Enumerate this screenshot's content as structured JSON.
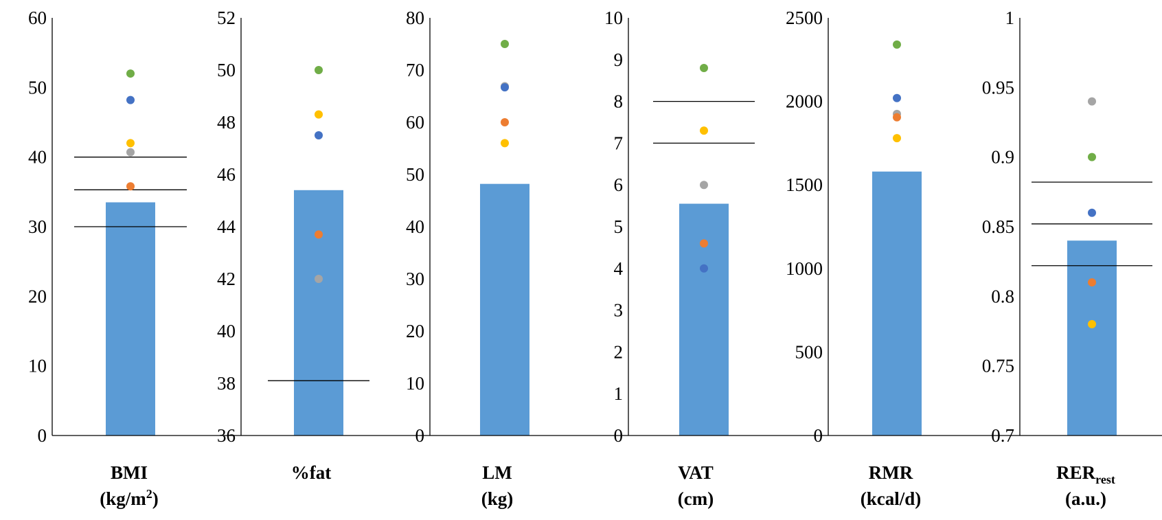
{
  "chart_data": [
    {
      "type": "bar",
      "category": "BMI",
      "label_lines": [
        {
          "main": "BMI"
        },
        {
          "main": "(kg/m",
          "sup": "2",
          "tail": ")"
        }
      ],
      "ylim": [
        0,
        60
      ],
      "yticks": [
        "0",
        "10",
        "20",
        "30",
        "40",
        "50",
        "60"
      ],
      "ytick_values": [
        0,
        10,
        20,
        30,
        40,
        50,
        60
      ],
      "bar_value": 33.5,
      "reference_lines": [
        40,
        35.3,
        30
      ],
      "points": [
        {
          "color": "#70ad47",
          "value": 52
        },
        {
          "color": "#4472c4",
          "value": 48.2
        },
        {
          "color": "#ffc000",
          "value": 42
        },
        {
          "color": "#a5a5a5",
          "value": 40.7
        },
        {
          "color": "#ed7d31",
          "value": 35.8
        }
      ]
    },
    {
      "type": "bar",
      "category": "%fat",
      "label_lines": [
        {
          "main": "%fat"
        }
      ],
      "ylim": [
        36,
        52
      ],
      "yticks": [
        "36",
        "38",
        "40",
        "42",
        "44",
        "46",
        "48",
        "50",
        "52"
      ],
      "ytick_values": [
        36,
        38,
        40,
        42,
        44,
        46,
        48,
        50,
        52
      ],
      "bar_value": 45.4,
      "reference_lines": [
        38.1
      ],
      "points": [
        {
          "color": "#70ad47",
          "value": 50
        },
        {
          "color": "#ffc000",
          "value": 48.3
        },
        {
          "color": "#4472c4",
          "value": 47.5
        },
        {
          "color": "#ed7d31",
          "value": 43.7
        },
        {
          "color": "#a5a5a5",
          "value": 42
        }
      ]
    },
    {
      "type": "bar",
      "category": "LM",
      "label_lines": [
        {
          "main": "LM"
        },
        {
          "main": "(kg)"
        }
      ],
      "ylim": [
        0,
        80
      ],
      "yticks": [
        "0",
        "10",
        "20",
        "30",
        "40",
        "50",
        "60",
        "70",
        "80"
      ],
      "ytick_values": [
        0,
        10,
        20,
        30,
        40,
        50,
        60,
        70,
        80
      ],
      "bar_value": 48.2,
      "reference_lines": [],
      "points": [
        {
          "color": "#70ad47",
          "value": 75
        },
        {
          "color": "#a5a5a5",
          "value": 66.9
        },
        {
          "color": "#4472c4",
          "value": 66.7
        },
        {
          "color": "#ed7d31",
          "value": 60
        },
        {
          "color": "#ffc000",
          "value": 56
        }
      ]
    },
    {
      "type": "bar",
      "category": "VAT",
      "label_lines": [
        {
          "main": "VAT"
        },
        {
          "main": "(cm)"
        }
      ],
      "ylim": [
        0,
        10
      ],
      "yticks": [
        "0",
        "1",
        "2",
        "3",
        "4",
        "5",
        "6",
        "7",
        "8",
        "9",
        "10"
      ],
      "ytick_values": [
        0,
        1,
        2,
        3,
        4,
        5,
        6,
        7,
        8,
        9,
        10
      ],
      "bar_value": 5.55,
      "reference_lines": [
        8,
        7
      ],
      "points": [
        {
          "color": "#70ad47",
          "value": 8.8
        },
        {
          "color": "#ffc000",
          "value": 7.3
        },
        {
          "color": "#a5a5a5",
          "value": 6
        },
        {
          "color": "#ed7d31",
          "value": 4.6
        },
        {
          "color": "#4472c4",
          "value": 4
        }
      ]
    },
    {
      "type": "bar",
      "category": "RMR",
      "label_lines": [
        {
          "main": "RMR"
        },
        {
          "main": "(kcal/d)"
        }
      ],
      "ylim": [
        0,
        2500
      ],
      "yticks": [
        "0",
        "500",
        "1000",
        "1500",
        "2000",
        "2500"
      ],
      "ytick_values": [
        0,
        500,
        1000,
        1500,
        2000,
        2500
      ],
      "bar_value": 1580,
      "reference_lines": [],
      "points": [
        {
          "color": "#70ad47",
          "value": 2340
        },
        {
          "color": "#4472c4",
          "value": 2020
        },
        {
          "color": "#a5a5a5",
          "value": 1925
        },
        {
          "color": "#ed7d31",
          "value": 1905
        },
        {
          "color": "#ffc000",
          "value": 1780
        }
      ]
    },
    {
      "type": "bar",
      "category": "RERrest",
      "label_lines": [
        {
          "main": "RER",
          "sub": "rest"
        },
        {
          "main": "(a.u.)"
        }
      ],
      "ylim": [
        0.7,
        1.0
      ],
      "yticks": [
        "0.7",
        "0.75",
        "0.8",
        "0.85",
        "0.9",
        "0.95",
        "1"
      ],
      "ytick_values": [
        0.7,
        0.75,
        0.8,
        0.85,
        0.9,
        0.95,
        1.0
      ],
      "bar_value": 0.84,
      "reference_lines": [
        0.882,
        0.852,
        0.822
      ],
      "points": [
        {
          "color": "#a5a5a5",
          "value": 0.94
        },
        {
          "color": "#70ad47",
          "value": 0.9
        },
        {
          "color": "#4472c4",
          "value": 0.86
        },
        {
          "color": "#ed7d31",
          "value": 0.81
        },
        {
          "color": "#ffc000",
          "value": 0.78
        }
      ]
    }
  ],
  "colors": {
    "bar": "#5b9bd5",
    "axis": "#000000",
    "reference_line": "#000000"
  }
}
